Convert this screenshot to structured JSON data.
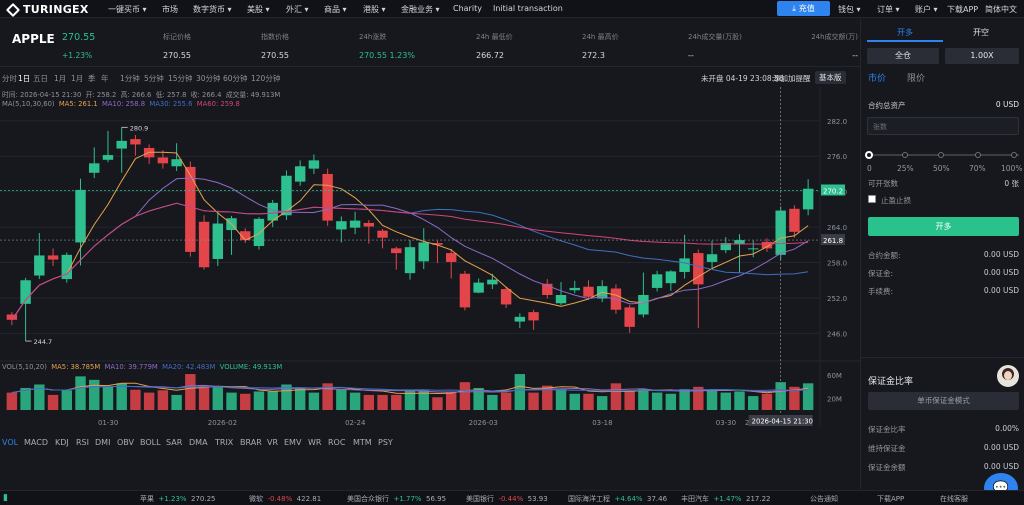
{
  "nav": {
    "brand": "TURINGEX",
    "items": [
      "一键买币 ▾",
      "市场",
      "数字货币 ▾",
      "美股 ▾",
      "外汇 ▾",
      "商品 ▾",
      "港股 ▾",
      "金融业务 ▾",
      "Charity",
      "Initial transaction"
    ],
    "recharge": "充值",
    "right_items": [
      "钱包 ▾",
      "订单 ▾",
      "账户 ▾",
      "下载APP",
      "简体中文"
    ]
  },
  "ticker": {
    "symbol": "APPLE",
    "price": "270.55",
    "change": "+1.23%",
    "cols": [
      {
        "label": "标记价格",
        "value": "270.55"
      },
      {
        "label": "指数价格",
        "value": "270.55"
      },
      {
        "label": "24h涨跌",
        "value": "270.55  1.23%"
      },
      {
        "label": "24h 最低价",
        "value": "266.72"
      },
      {
        "label": "24h 最高价",
        "value": "272.3"
      },
      {
        "label": "24h成交量(万股)",
        "value": "--"
      },
      {
        "label": "24h成交额(万)",
        "value": "--"
      }
    ]
  },
  "toolbar": {
    "periods": [
      "分时",
      "1日",
      "五日",
      "1月",
      "1月",
      "季",
      "年",
      "1分钟",
      "5分钟",
      "15分钟",
      "30分钟",
      "60分钟",
      "120分钟"
    ],
    "market_status": "未开盘 04-19 23:08:56",
    "set_reminder": "添加加提醒",
    "version": "基本版"
  },
  "info_line": {
    "time": "时间: 2026-04-15 21:30",
    "open": "开: 258.2",
    "high": "高: 266.6",
    "low": "低: 257.8",
    "close": "收: 266.4",
    "volume": "成交量: 49.913M"
  },
  "ma_line": {
    "label": "MA(5,10,30,60)",
    "ma5": "MA5: 261.1",
    "ma10": "MA10: 258.8",
    "ma30": "MA30: 255.6",
    "ma60": "MA60: 259.8"
  },
  "vol_line": {
    "label": "VOL(5,10,20)",
    "ma5": "MA5: 38.785M",
    "ma10": "MA10: 39.779M",
    "ma20": "MA20: 42.483M",
    "volume": "VOLUME: 49.913M"
  },
  "chart_data": {
    "type": "candlestick",
    "price_axis_ticks": [
      282.0,
      276.0,
      270.0,
      264.0,
      258.0,
      252.0,
      246.0
    ],
    "volume_axis_ticks": [
      "60M",
      "20M"
    ],
    "x_tick_labels": [
      "01-30",
      "2026-02",
      "02-24",
      "2026-03",
      "03-18",
      "03-30",
      "2026-04"
    ],
    "hover_x_label": "2026-04-15 21:30",
    "current_price_tag": "270.2",
    "crosshair_price_tag": "261.8",
    "high_marker": "280.9",
    "low_marker": "244.7",
    "candles": [
      {
        "o": 249.2,
        "c": 248.3,
        "h": 249.6,
        "l": 247.4,
        "v": 30
      },
      {
        "o": 251.0,
        "c": 255.0,
        "h": 255.4,
        "l": 244.7,
        "v": 38
      },
      {
        "o": 255.8,
        "c": 259.2,
        "h": 263.0,
        "l": 255.2,
        "v": 44
      },
      {
        "o": 259.2,
        "c": 258.5,
        "h": 260.4,
        "l": 257.4,
        "v": 26
      },
      {
        "o": 255.2,
        "c": 259.3,
        "h": 259.7,
        "l": 254.6,
        "v": 34
      },
      {
        "o": 261.4,
        "c": 270.3,
        "h": 272.2,
        "l": 257.5,
        "v": 58
      },
      {
        "o": 273.2,
        "c": 274.8,
        "h": 277.5,
        "l": 272.3,
        "v": 52
      },
      {
        "o": 275.4,
        "c": 276.2,
        "h": 280.3,
        "l": 275.0,
        "v": 40
      },
      {
        "o": 277.3,
        "c": 278.6,
        "h": 280.9,
        "l": 273.2,
        "v": 46
      },
      {
        "o": 278.9,
        "c": 278.0,
        "h": 279.6,
        "l": 276.1,
        "v": 35
      },
      {
        "o": 277.4,
        "c": 275.8,
        "h": 278.0,
        "l": 274.7,
        "v": 30
      },
      {
        "o": 275.8,
        "c": 274.8,
        "h": 277.0,
        "l": 273.9,
        "v": 34
      },
      {
        "o": 274.3,
        "c": 275.5,
        "h": 278.2,
        "l": 273.5,
        "v": 26
      },
      {
        "o": 274.2,
        "c": 259.8,
        "h": 275.1,
        "l": 259.0,
        "v": 62
      },
      {
        "o": 264.9,
        "c": 257.2,
        "h": 266.0,
        "l": 256.8,
        "v": 42
      },
      {
        "o": 258.6,
        "c": 264.6,
        "h": 266.8,
        "l": 257.4,
        "v": 40
      },
      {
        "o": 263.5,
        "c": 265.5,
        "h": 265.9,
        "l": 259.3,
        "v": 30
      },
      {
        "o": 263.3,
        "c": 261.8,
        "h": 263.8,
        "l": 261.3,
        "v": 28
      },
      {
        "o": 260.8,
        "c": 265.4,
        "h": 265.7,
        "l": 260.2,
        "v": 32
      },
      {
        "o": 265.1,
        "c": 268.1,
        "h": 268.6,
        "l": 264.0,
        "v": 32
      },
      {
        "o": 266.0,
        "c": 272.7,
        "h": 273.6,
        "l": 265.2,
        "v": 44
      },
      {
        "o": 271.7,
        "c": 274.3,
        "h": 275.3,
        "l": 271.0,
        "v": 38
      },
      {
        "o": 273.9,
        "c": 275.3,
        "h": 276.3,
        "l": 273.0,
        "v": 30
      },
      {
        "o": 273.0,
        "c": 265.1,
        "h": 273.9,
        "l": 264.2,
        "v": 46
      },
      {
        "o": 263.6,
        "c": 265.0,
        "h": 265.8,
        "l": 261.4,
        "v": 36
      },
      {
        "o": 263.9,
        "c": 265.1,
        "h": 266.6,
        "l": 262.8,
        "v": 30
      },
      {
        "o": 264.7,
        "c": 264.1,
        "h": 265.2,
        "l": 261.2,
        "v": 26
      },
      {
        "o": 263.4,
        "c": 262.2,
        "h": 263.7,
        "l": 260.4,
        "v": 26
      },
      {
        "o": 260.4,
        "c": 259.6,
        "h": 260.7,
        "l": 256.8,
        "v": 26
      },
      {
        "o": 256.2,
        "c": 260.6,
        "h": 261.8,
        "l": 255.1,
        "v": 34
      },
      {
        "o": 258.2,
        "c": 261.4,
        "h": 263.8,
        "l": 256.9,
        "v": 34
      },
      {
        "o": 261.3,
        "c": 261.0,
        "h": 261.7,
        "l": 257.9,
        "v": 22
      },
      {
        "o": 259.6,
        "c": 258.1,
        "h": 260.3,
        "l": 255.3,
        "v": 30
      },
      {
        "o": 256.1,
        "c": 250.4,
        "h": 256.6,
        "l": 249.9,
        "v": 48
      },
      {
        "o": 252.9,
        "c": 254.6,
        "h": 255.3,
        "l": 252.8,
        "v": 38
      },
      {
        "o": 254.3,
        "c": 255.1,
        "h": 256.1,
        "l": 253.5,
        "v": 26
      },
      {
        "o": 253.5,
        "c": 250.9,
        "h": 253.9,
        "l": 250.3,
        "v": 30
      },
      {
        "o": 248.0,
        "c": 248.8,
        "h": 249.4,
        "l": 246.9,
        "v": 62
      },
      {
        "o": 249.6,
        "c": 248.2,
        "h": 250.0,
        "l": 246.6,
        "v": 30
      },
      {
        "o": 254.4,
        "c": 252.5,
        "h": 255.2,
        "l": 251.9,
        "v": 42
      },
      {
        "o": 251.1,
        "c": 252.5,
        "h": 254.7,
        "l": 250.8,
        "v": 36
      },
      {
        "o": 253.3,
        "c": 253.7,
        "h": 254.9,
        "l": 252.8,
        "v": 28
      },
      {
        "o": 253.9,
        "c": 252.2,
        "h": 255.0,
        "l": 251.7,
        "v": 28
      },
      {
        "o": 251.9,
        "c": 254.0,
        "h": 255.0,
        "l": 251.3,
        "v": 24
      },
      {
        "o": 253.6,
        "c": 250.0,
        "h": 254.3,
        "l": 249.3,
        "v": 46
      },
      {
        "o": 250.4,
        "c": 247.1,
        "h": 250.8,
        "l": 246.1,
        "v": 34
      },
      {
        "o": 249.2,
        "c": 252.5,
        "h": 256.3,
        "l": 248.7,
        "v": 36
      },
      {
        "o": 253.7,
        "c": 256.0,
        "h": 256.6,
        "l": 253.1,
        "v": 30
      },
      {
        "o": 254.5,
        "c": 256.5,
        "h": 256.7,
        "l": 253.2,
        "v": 28
      },
      {
        "o": 256.4,
        "c": 258.7,
        "h": 262.7,
        "l": 255.3,
        "v": 36
      },
      {
        "o": 259.6,
        "c": 254.3,
        "h": 260.2,
        "l": 246.9,
        "v": 40
      },
      {
        "o": 258.1,
        "c": 259.4,
        "h": 261.7,
        "l": 257.1,
        "v": 34
      },
      {
        "o": 260.1,
        "c": 261.3,
        "h": 262.3,
        "l": 259.6,
        "v": 30
      },
      {
        "o": 261.2,
        "c": 261.8,
        "h": 262.8,
        "l": 256.2,
        "v": 32
      },
      {
        "o": 260.3,
        "c": 260.4,
        "h": 261.7,
        "l": 258.9,
        "v": 24
      },
      {
        "o": 261.5,
        "c": 260.4,
        "h": 262.1,
        "l": 259.8,
        "v": 28
      },
      {
        "o": 259.3,
        "c": 266.8,
        "h": 267.5,
        "l": 258.4,
        "v": 48
      },
      {
        "o": 267.1,
        "c": 263.2,
        "h": 267.7,
        "l": 262.2,
        "v": 40
      },
      {
        "o": 267.0,
        "c": 270.5,
        "h": 272.1,
        "l": 266.0,
        "v": 46
      }
    ],
    "ma_lines": {
      "MA5": {
        "color": "#e6a24c"
      },
      "MA10": {
        "color": "#8e6bc9"
      },
      "MA30": {
        "color": "#3f6fc4"
      },
      "MA60": {
        "color": "#d4437a"
      }
    },
    "colors": {
      "up": "#2ec08e",
      "down": "#e3454a"
    }
  },
  "indicators": [
    "VOL",
    "MACD",
    "KDJ",
    "RSI",
    "DMI",
    "OBV",
    "BOLL",
    "SAR",
    "DMA",
    "TRIX",
    "BRAR",
    "VR",
    "EMV",
    "WR",
    "ROC",
    "MTM",
    "PSY"
  ],
  "order_panel": {
    "tab_long": "开多",
    "tab_short": "开空",
    "position_mode": "全仓",
    "leverage": "1.00X",
    "type_market": "市价",
    "type_limit": "限价",
    "available_label": "合约总资产",
    "available_value": "0 USD",
    "amount_placeholder": "张数",
    "slider_ticks": [
      "0",
      "25%",
      "50%",
      "70%",
      "100%"
    ],
    "openable_label": "可开张数",
    "openable_value": "0 张",
    "tp_sl_label": "止盈止损",
    "submit": "开多",
    "rows": [
      {
        "label": "合约金额:",
        "value": "0.00 USD"
      },
      {
        "label": "保证金:",
        "value": "0.00 USD"
      },
      {
        "label": "手续费:",
        "value": "0.00 USD"
      }
    ]
  },
  "margin_panel": {
    "title": "保证金比率",
    "mode_button": "单币保证金模式",
    "rows": [
      {
        "label": "保证金比率",
        "value": "0.00%"
      },
      {
        "label": "维持保证金",
        "value": "0.00 USD"
      },
      {
        "label": "保证金余额",
        "value": "0.00 USD"
      }
    ]
  },
  "footer": {
    "tickers": [
      {
        "name": "苹果",
        "change": "+1.23%",
        "price": "270.25",
        "dir": "up"
      },
      {
        "name": "微软",
        "change": "-0.48%",
        "price": "422.81",
        "dir": "down"
      },
      {
        "name": "美国合众银行",
        "change": "+1.77%",
        "price": "56.95",
        "dir": "up"
      },
      {
        "name": "美国银行",
        "change": "-0.44%",
        "price": "53.93",
        "dir": "down"
      },
      {
        "name": "国际海洋工程",
        "change": "+4.64%",
        "price": "37.46",
        "dir": "up"
      },
      {
        "name": "丰田汽车",
        "change": "+1.47%",
        "price": "217.22",
        "dir": "up"
      }
    ],
    "links": [
      "公告通知",
      "下载APP",
      "在线客服"
    ]
  }
}
